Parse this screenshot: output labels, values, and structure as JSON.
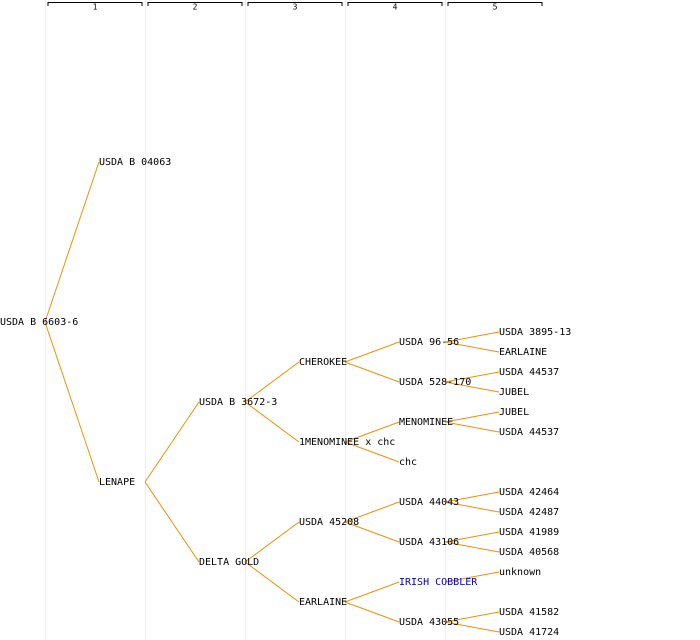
{
  "headers": [
    "1",
    "2",
    "3",
    "4",
    "5"
  ],
  "nodes": [
    [
      "USDA B 6603-6"
    ],
    [
      "USDA B 04063",
      "LENAPE"
    ],
    [
      "USDA B 3672-3",
      "DELTA GOLD"
    ],
    [
      "CHEROKEE",
      "1MENOMINEE x chc",
      "USDA 45208",
      "EARLAINE"
    ],
    [
      "USDA 96-56",
      "USDA 528-170",
      "MENOMINEE",
      "chc",
      "USDA 44043",
      "USDA 43106",
      "IRISH COBBLER",
      "USDA 43055"
    ],
    [
      "USDA 3895-13",
      "EARLAINE",
      "USDA 44537",
      "JUBEL",
      "JUBEL",
      "USDA 44537",
      "USDA 42464",
      "USDA 42487",
      "USDA 41989",
      "USDA 40568",
      "unknown",
      "USDA 41582",
      "USDA 41724"
    ]
  ]
}
